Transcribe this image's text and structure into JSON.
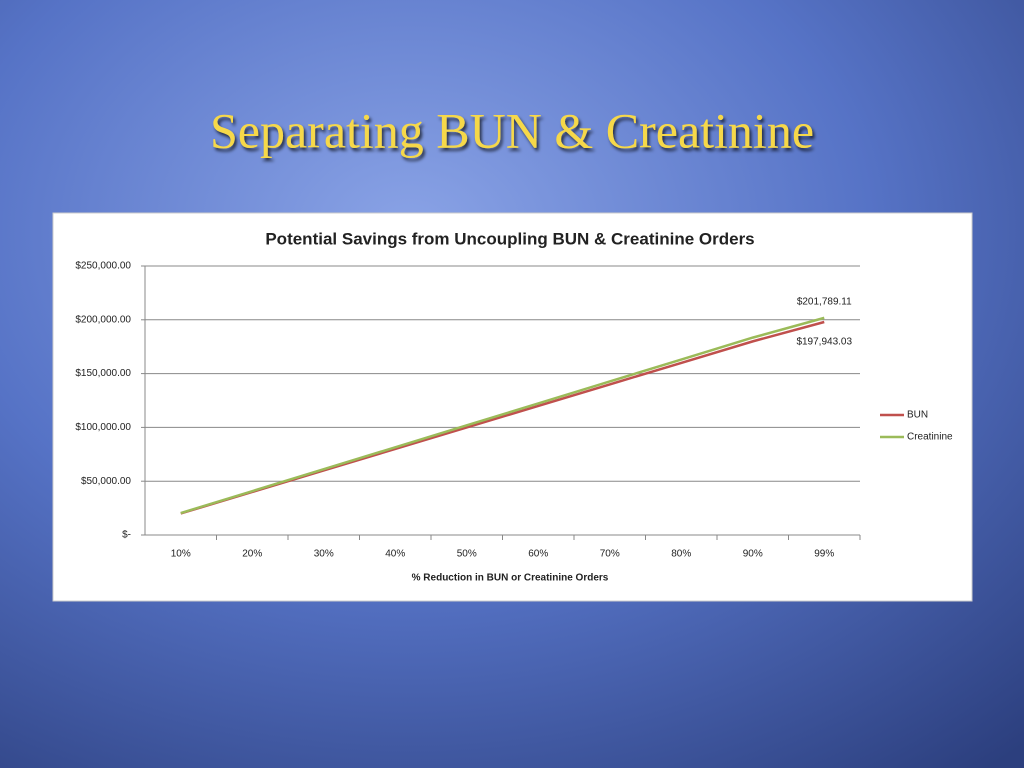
{
  "slide_title": "Separating BUN & Creatinine",
  "chart_data": {
    "type": "line",
    "title": "Potential Savings from Uncoupling BUN & Creatinine Orders",
    "x_label": "% Reduction in BUN or Creatinine Orders",
    "categories": [
      "10%",
      "20%",
      "30%",
      "40%",
      "50%",
      "60%",
      "70%",
      "80%",
      "90%",
      "99%"
    ],
    "series": [
      {
        "name": "BUN",
        "color": "#c0504d",
        "values": [
          19994,
          39988,
          59983,
          79977,
          99971,
          119965,
          139959,
          159954,
          179948,
          197943.03
        ],
        "value_labels": [
          null,
          null,
          null,
          null,
          null,
          null,
          null,
          null,
          null,
          "$197,943.03"
        ]
      },
      {
        "name": "Creatinine",
        "color": "#9bbb59",
        "values": [
          20383,
          40765,
          61148,
          81531,
          101914,
          122296,
          142679,
          163062,
          183444,
          201789.11
        ],
        "value_labels": [
          null,
          null,
          null,
          null,
          null,
          null,
          null,
          null,
          null,
          "$201,789.11"
        ]
      }
    ],
    "ylim": [
      0,
      250000
    ],
    "yticks": [
      {
        "value": 0,
        "label": "$-"
      },
      {
        "value": 50000,
        "label": "$50,000.00"
      },
      {
        "value": 100000,
        "label": "$100,000.00"
      },
      {
        "value": 150000,
        "label": "$150,000.00"
      },
      {
        "value": 200000,
        "label": "$200,000.00"
      },
      {
        "value": 250000,
        "label": "$250,000.00"
      }
    ],
    "grid": true,
    "legend": "right"
  }
}
